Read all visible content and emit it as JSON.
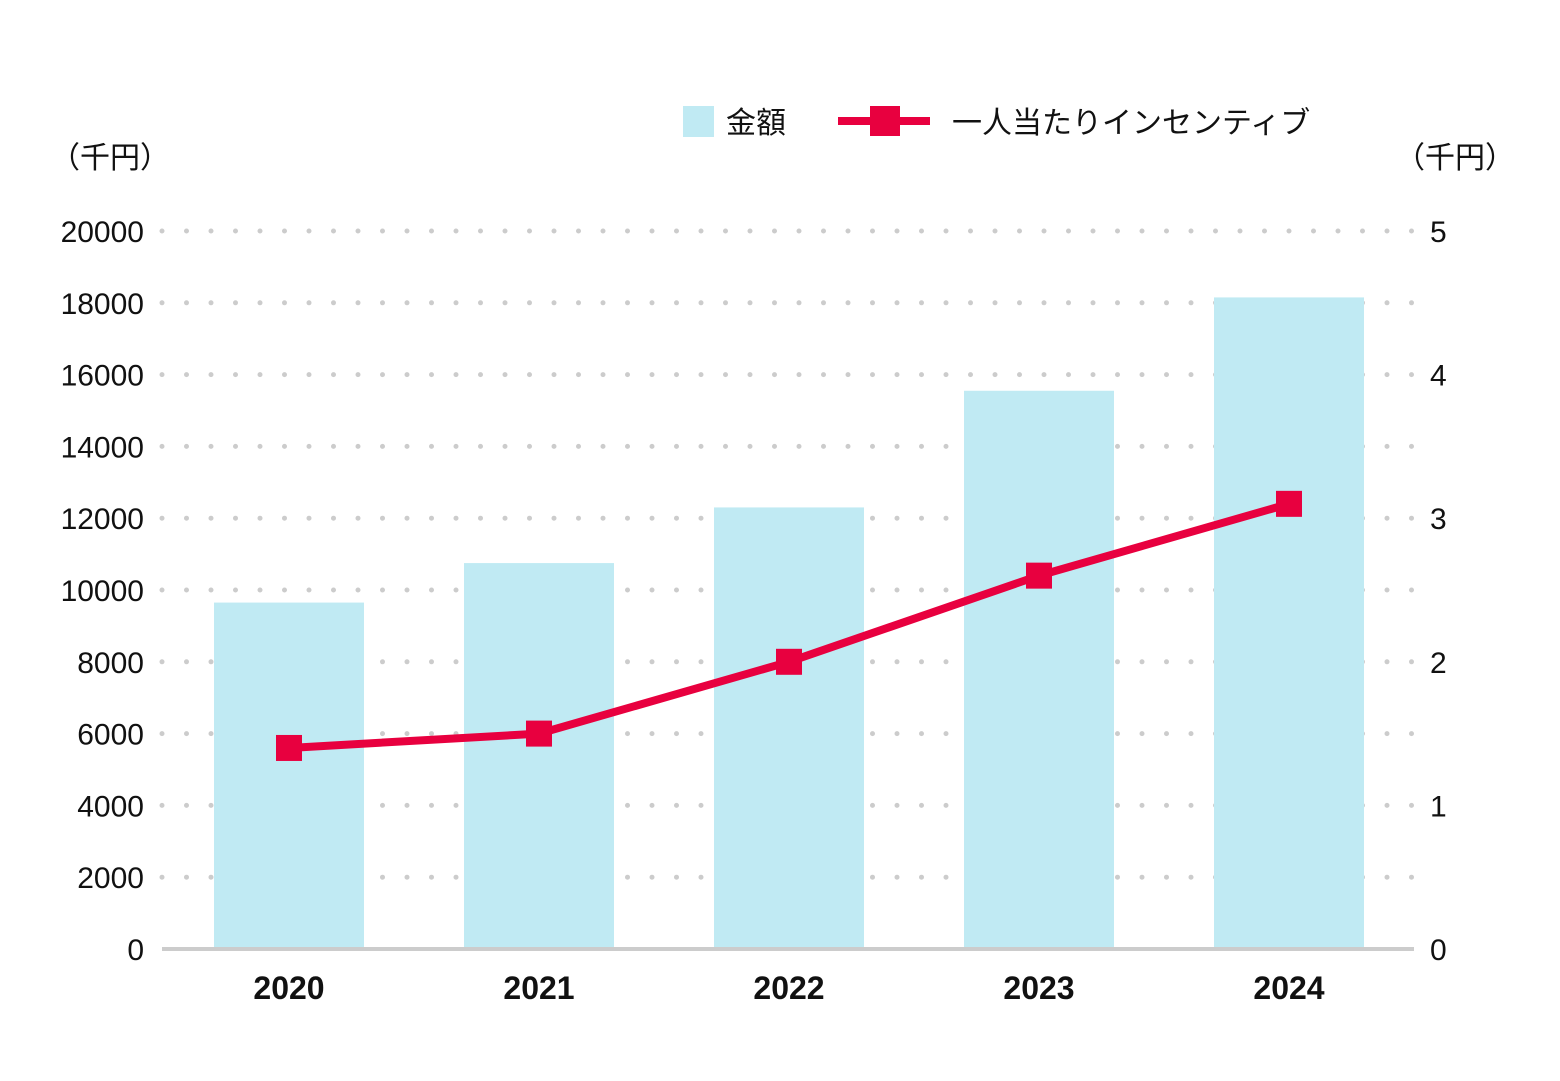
{
  "chart_data": {
    "type": "bar+line",
    "categories": [
      "2020",
      "2021",
      "2022",
      "2023",
      "2024"
    ],
    "series": [
      {
        "name": "金額",
        "type": "bar",
        "axis": "left",
        "values": [
          9650,
          10750,
          12300,
          15550,
          18150
        ]
      },
      {
        "name": "一人当たりインセンティブ",
        "type": "line",
        "axis": "right",
        "values": [
          1.4,
          1.5,
          2.0,
          2.6,
          3.1
        ]
      }
    ],
    "left_axis": {
      "unit": "（千円）",
      "ylim": [
        0,
        20000
      ],
      "ticks": [
        "0",
        "2000",
        "4000",
        "6000",
        "8000",
        "10000",
        "12000",
        "14000",
        "16000",
        "18000",
        "20000"
      ]
    },
    "right_axis": {
      "unit": "（千円）",
      "ylim": [
        0,
        5
      ],
      "ticks": [
        "0",
        "1",
        "2",
        "3",
        "4",
        "5"
      ]
    },
    "grid": "dotted horizontal",
    "legend_position": "top-right",
    "colors": {
      "bar": "#c0eaf3",
      "line": "#e8003f",
      "grid": "#cccccc",
      "axis": "#cccccc"
    }
  }
}
